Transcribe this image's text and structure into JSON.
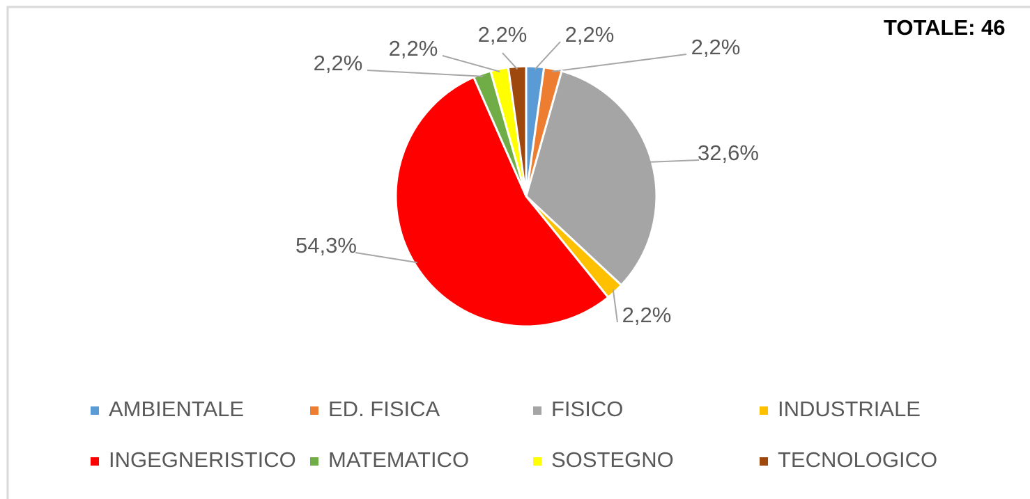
{
  "chart_data": {
    "type": "pie",
    "annotation": "TOTALE: 46",
    "categories": [
      "AMBIENTALE",
      "ED. FISICA",
      "FISICO",
      "INDUSTRIALE",
      "INGEGNERISTICO",
      "MATEMATICO",
      "SOSTEGNO",
      "TECNOLOGICO"
    ],
    "values": [
      2.2,
      2.2,
      32.6,
      2.2,
      54.3,
      2.2,
      2.2,
      2.2
    ],
    "value_labels": [
      "2,2%",
      "2,2%",
      "32,6%",
      "2,2%",
      "54,3%",
      "2,2%",
      "2,2%",
      "2,2%"
    ],
    "colors": [
      "#5b9bd5",
      "#ed7d31",
      "#a5a5a5",
      "#ffc000",
      "#ff0000",
      "#70ad47",
      "#ffff00",
      "#9e480e"
    ],
    "legend": "bottom"
  }
}
